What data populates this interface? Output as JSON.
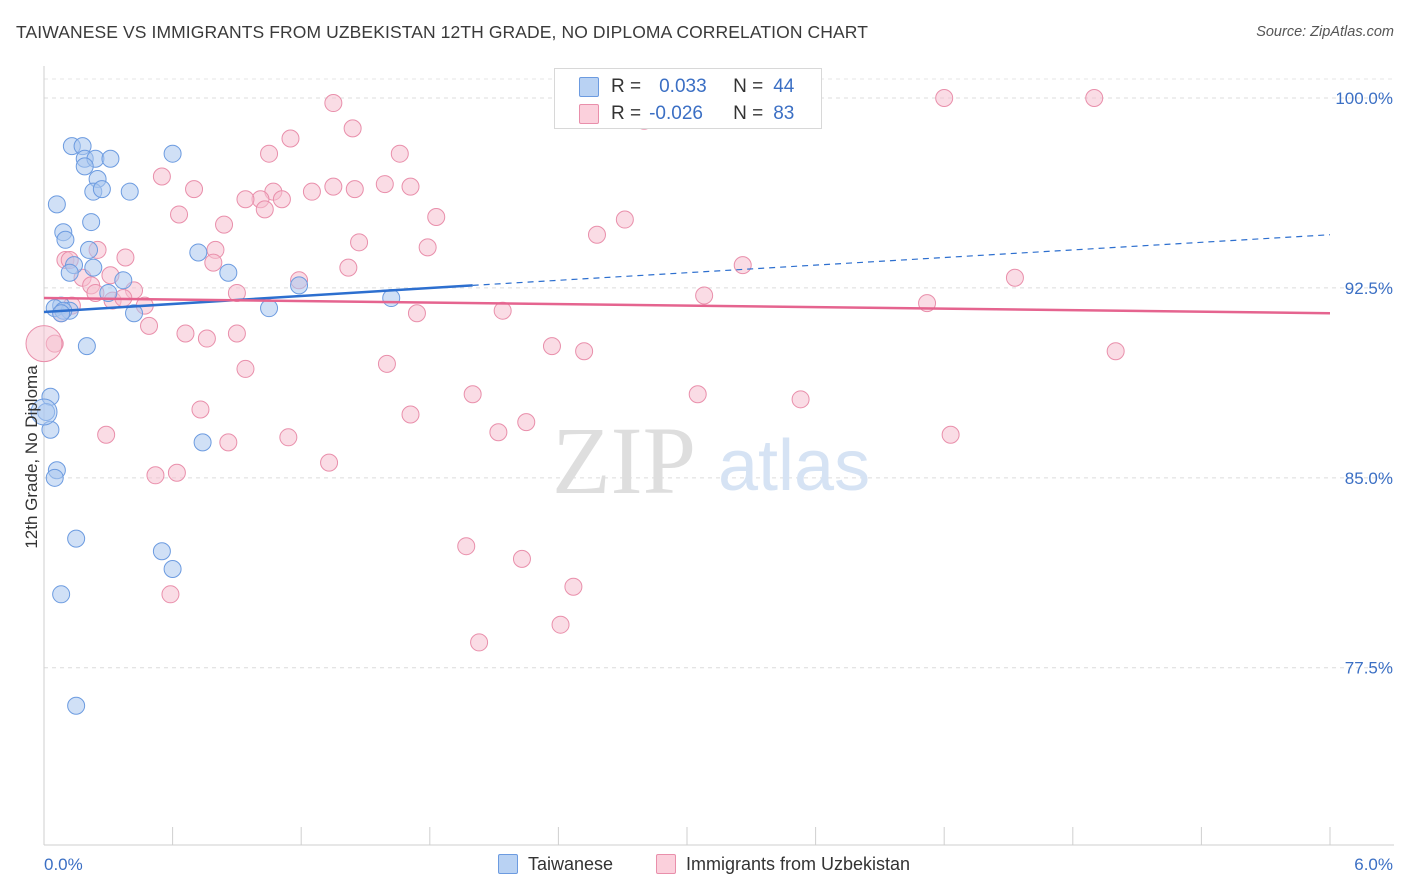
{
  "header": {
    "title": "TAIWANESE VS IMMIGRANTS FROM UZBEKISTAN 12TH GRADE, NO DIPLOMA CORRELATION CHART",
    "source": "Source: ZipAtlas.com"
  },
  "watermark": {
    "zip": "ZIP",
    "atlas": "atlas"
  },
  "legend": {
    "r_label": "R =",
    "n_label": "N =",
    "series": [
      {
        "name": "Taiwanese",
        "r": "0.033",
        "n": "44"
      },
      {
        "name": "Immigrants from Uzbekistan",
        "r": "-0.026",
        "n": "83"
      }
    ]
  },
  "colors": {
    "blue_fill": "#a9c7ef",
    "blue_stroke": "#6c9be0",
    "blue_line": "#2d6fcf",
    "pink_fill": "#f6bfcf",
    "pink_stroke": "#e98fab",
    "pink_line": "#e5648f",
    "tick_text": "#3b6fc4"
  },
  "chart_data": {
    "type": "scatter",
    "title": "TAIWANESE VS IMMIGRANTS FROM UZBEKISTAN 12TH GRADE, NO DIPLOMA CORRELATION CHART",
    "xlabel": "",
    "ylabel": "12th Grade, No Diploma",
    "xlim": [
      0,
      6
    ],
    "ylim": [
      70.5,
      101.5
    ],
    "x_tick_labels": [
      "0.0%",
      "6.0%"
    ],
    "y_ticks": [
      77.5,
      85.0,
      92.5,
      100.0
    ],
    "y_tick_labels": [
      "77.5%",
      "85.0%",
      "92.5%",
      "100.0%"
    ],
    "grid": true,
    "legend_position": "top-center",
    "series": [
      {
        "name": "Taiwanese",
        "r": 0.033,
        "n": 44,
        "trend": {
          "x": [
            0,
            2.0
          ],
          "y": [
            91.55,
            92.6
          ],
          "dashed_to": [
            6.0,
            94.6
          ]
        },
        "points": [
          [
            0.13,
            98.1
          ],
          [
            0.18,
            98.1
          ],
          [
            0.19,
            97.6
          ],
          [
            0.24,
            97.6
          ],
          [
            0.31,
            97.6
          ],
          [
            0.6,
            97.8
          ],
          [
            0.19,
            97.3
          ],
          [
            0.25,
            96.8
          ],
          [
            0.23,
            96.3
          ],
          [
            0.27,
            96.4
          ],
          [
            0.4,
            96.3
          ],
          [
            0.06,
            95.8
          ],
          [
            0.22,
            95.1
          ],
          [
            0.09,
            94.7
          ],
          [
            0.1,
            94.4
          ],
          [
            0.21,
            94.0
          ],
          [
            0.72,
            93.9
          ],
          [
            0.14,
            93.4
          ],
          [
            0.12,
            93.1
          ],
          [
            0.23,
            93.3
          ],
          [
            0.86,
            93.1
          ],
          [
            0.37,
            92.8
          ],
          [
            0.3,
            92.3
          ],
          [
            1.19,
            92.6
          ],
          [
            1.62,
            92.1
          ],
          [
            0.08,
            91.8
          ],
          [
            0.05,
            91.7
          ],
          [
            0.12,
            91.6
          ],
          [
            0.42,
            91.5
          ],
          [
            1.05,
            91.7
          ],
          [
            0.2,
            90.2
          ],
          [
            0.03,
            88.2
          ],
          [
            0.01,
            87.6
          ],
          [
            0.03,
            86.9
          ],
          [
            0.74,
            86.4
          ],
          [
            0.06,
            85.3
          ],
          [
            0.05,
            85.0
          ],
          [
            0.15,
            82.6
          ],
          [
            0.55,
            82.1
          ],
          [
            0.6,
            81.4
          ],
          [
            0.08,
            80.4
          ],
          [
            0.15,
            76.0
          ],
          [
            0.09,
            91.6
          ],
          [
            0.08,
            91.5
          ]
        ]
      },
      {
        "name": "Immigrants from Uzbekistan",
        "r": -0.026,
        "n": 83,
        "trend": {
          "x": [
            0,
            6.0
          ],
          "y": [
            92.1,
            91.5
          ]
        },
        "points": [
          [
            1.35,
            99.8
          ],
          [
            4.2,
            100.0
          ],
          [
            4.9,
            100.0
          ],
          [
            2.5,
            99.4
          ],
          [
            2.8,
            99.1
          ],
          [
            1.44,
            98.8
          ],
          [
            1.15,
            98.4
          ],
          [
            1.05,
            97.8
          ],
          [
            1.66,
            97.8
          ],
          [
            0.55,
            96.9
          ],
          [
            0.7,
            96.4
          ],
          [
            1.07,
            96.3
          ],
          [
            1.35,
            96.5
          ],
          [
            1.25,
            96.3
          ],
          [
            1.45,
            96.4
          ],
          [
            1.59,
            96.6
          ],
          [
            1.71,
            96.5
          ],
          [
            1.01,
            96.0
          ],
          [
            0.94,
            96.0
          ],
          [
            1.11,
            96.0
          ],
          [
            1.03,
            95.6
          ],
          [
            0.63,
            95.4
          ],
          [
            1.83,
            95.3
          ],
          [
            2.71,
            95.2
          ],
          [
            0.84,
            95.0
          ],
          [
            2.58,
            94.6
          ],
          [
            1.47,
            94.3
          ],
          [
            1.79,
            94.1
          ],
          [
            0.8,
            94.0
          ],
          [
            0.25,
            94.0
          ],
          [
            0.38,
            93.7
          ],
          [
            0.1,
            93.6
          ],
          [
            0.12,
            93.6
          ],
          [
            0.79,
            93.5
          ],
          [
            3.26,
            93.4
          ],
          [
            1.42,
            93.3
          ],
          [
            0.31,
            93.0
          ],
          [
            0.18,
            92.9
          ],
          [
            1.19,
            92.8
          ],
          [
            4.53,
            92.9
          ],
          [
            0.22,
            92.6
          ],
          [
            0.42,
            92.4
          ],
          [
            0.24,
            92.3
          ],
          [
            0.9,
            92.3
          ],
          [
            3.08,
            92.2
          ],
          [
            0.32,
            92.0
          ],
          [
            0.37,
            92.1
          ],
          [
            0.47,
            91.8
          ],
          [
            0.13,
            91.8
          ],
          [
            4.12,
            91.9
          ],
          [
            1.74,
            91.5
          ],
          [
            2.14,
            91.6
          ],
          [
            0.08,
            91.5
          ],
          [
            0.49,
            91.0
          ],
          [
            0.66,
            90.7
          ],
          [
            0.9,
            90.7
          ],
          [
            0.76,
            90.5
          ],
          [
            2.37,
            90.2
          ],
          [
            2.52,
            90.0
          ],
          [
            5.0,
            90.0
          ],
          [
            0.05,
            90.3
          ],
          [
            1.6,
            89.5
          ],
          [
            0.94,
            89.3
          ],
          [
            2.0,
            88.3
          ],
          [
            3.05,
            88.3
          ],
          [
            3.53,
            88.1
          ],
          [
            0.73,
            87.7
          ],
          [
            1.71,
            87.5
          ],
          [
            2.25,
            87.2
          ],
          [
            0.29,
            86.7
          ],
          [
            2.12,
            86.8
          ],
          [
            1.14,
            86.6
          ],
          [
            4.23,
            86.7
          ],
          [
            0.86,
            86.4
          ],
          [
            1.33,
            85.6
          ],
          [
            0.62,
            85.2
          ],
          [
            0.52,
            85.1
          ],
          [
            1.97,
            82.3
          ],
          [
            2.23,
            81.8
          ],
          [
            2.47,
            80.7
          ],
          [
            0.59,
            80.4
          ],
          [
            2.41,
            79.2
          ],
          [
            2.03,
            78.5
          ]
        ]
      }
    ]
  }
}
